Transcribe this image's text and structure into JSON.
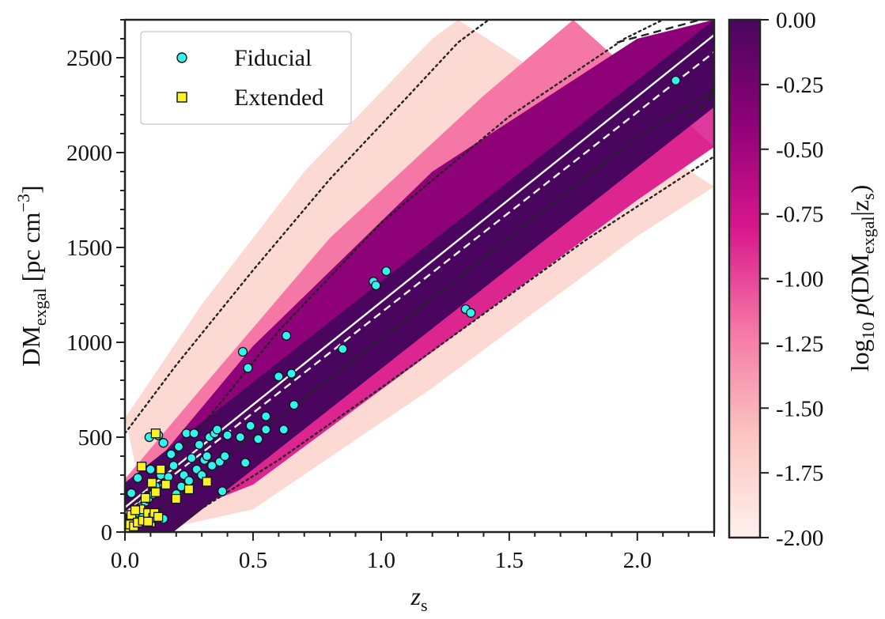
{
  "chart_data": {
    "type": "scatter",
    "title": "",
    "xlabel": {
      "base": "z",
      "sub": "s"
    },
    "ylabel": {
      "base": "DM",
      "sub": "exgal",
      "rest": " [pc cm",
      "sup": "−3",
      "close": "]"
    },
    "xlim": [
      0,
      2.3
    ],
    "ylim": [
      0,
      2700
    ],
    "x_ticks": [
      0.0,
      0.5,
      1.0,
      1.5,
      2.0
    ],
    "x_tick_labels": [
      "0.0",
      "0.5",
      "1.0",
      "1.5",
      "2.0"
    ],
    "y_ticks": [
      0,
      500,
      1000,
      1500,
      2000,
      2500
    ],
    "y_tick_labels": [
      "0",
      "500",
      "1000",
      "1500",
      "2000",
      "2500"
    ],
    "legend_position": "top-left",
    "colorbar": {
      "label": {
        "pre": "log",
        "sub10": "10",
        "p": "p",
        "open": "(DM",
        "sub": "exgal",
        "bar": "|z",
        "subz": "s",
        "close": ")"
      },
      "range": [
        -2.0,
        0.0
      ],
      "ticks": [
        0.0,
        -0.25,
        -0.5,
        -0.75,
        -1.0,
        -1.25,
        -1.5,
        -1.75,
        -2.0
      ],
      "tick_labels": [
        "0.00",
        "-0.25",
        "-0.50",
        "-0.75",
        "-1.00",
        "-1.25",
        "-1.50",
        "-1.75",
        "-2.00"
      ],
      "colors": [
        "#fff1ee",
        "#fbc4c0",
        "#f577a6",
        "#d8168c",
        "#8e0178",
        "#4a065e"
      ]
    },
    "series": [
      {
        "name": "Fiducial",
        "marker": "circle",
        "color": "#33f2f0",
        "points": [
          [
            0.005,
            10
          ],
          [
            0.012,
            20
          ],
          [
            0.02,
            40
          ],
          [
            0.025,
            205
          ],
          [
            0.03,
            55
          ],
          [
            0.04,
            60
          ],
          [
            0.05,
            285
          ],
          [
            0.055,
            100
          ],
          [
            0.06,
            130
          ],
          [
            0.07,
            80
          ],
          [
            0.08,
            160
          ],
          [
            0.09,
            175
          ],
          [
            0.095,
            500
          ],
          [
            0.1,
            330
          ],
          [
            0.11,
            200
          ],
          [
            0.12,
            240
          ],
          [
            0.13,
            510
          ],
          [
            0.14,
            300
          ],
          [
            0.15,
            470
          ],
          [
            0.16,
            260
          ],
          [
            0.17,
            290
          ],
          [
            0.18,
            410
          ],
          [
            0.19,
            350
          ],
          [
            0.2,
            200
          ],
          [
            0.21,
            450
          ],
          [
            0.22,
            240
          ],
          [
            0.23,
            300
          ],
          [
            0.24,
            520
          ],
          [
            0.25,
            270
          ],
          [
            0.26,
            390
          ],
          [
            0.27,
            520
          ],
          [
            0.28,
            330
          ],
          [
            0.29,
            460
          ],
          [
            0.3,
            300
          ],
          [
            0.31,
            380
          ],
          [
            0.32,
            400
          ],
          [
            0.33,
            500
          ],
          [
            0.34,
            350
          ],
          [
            0.35,
            520
          ],
          [
            0.36,
            540
          ],
          [
            0.37,
            370
          ],
          [
            0.38,
            215
          ],
          [
            0.39,
            400
          ],
          [
            0.4,
            510
          ],
          [
            0.45,
            500
          ],
          [
            0.46,
            950
          ],
          [
            0.47,
            365
          ],
          [
            0.48,
            865
          ],
          [
            0.49,
            560
          ],
          [
            0.52,
            490
          ],
          [
            0.55,
            540
          ],
          [
            0.55,
            610
          ],
          [
            0.6,
            820
          ],
          [
            0.62,
            540
          ],
          [
            0.63,
            1035
          ],
          [
            0.65,
            835
          ],
          [
            0.66,
            670
          ],
          [
            0.85,
            965
          ],
          [
            0.97,
            1320
          ],
          [
            0.98,
            1300
          ],
          [
            1.02,
            1375
          ],
          [
            1.33,
            1175
          ],
          [
            1.35,
            1155
          ],
          [
            2.15,
            2380
          ],
          [
            0.15,
            70
          ],
          [
            0.12,
            90
          ],
          [
            0.1,
            100
          ]
        ]
      },
      {
        "name": "Extended",
        "marker": "square",
        "color": "#fbf225",
        "points": [
          [
            0.01,
            20
          ],
          [
            0.02,
            40
          ],
          [
            0.025,
            90
          ],
          [
            0.035,
            30
          ],
          [
            0.05,
            50
          ],
          [
            0.06,
            120
          ],
          [
            0.065,
            345
          ],
          [
            0.07,
            60
          ],
          [
            0.08,
            180
          ],
          [
            0.09,
            100
          ],
          [
            0.1,
            50
          ],
          [
            0.105,
            260
          ],
          [
            0.11,
            75
          ],
          [
            0.115,
            100
          ],
          [
            0.12,
            520
          ],
          [
            0.12,
            210
          ],
          [
            0.13,
            80
          ],
          [
            0.14,
            330
          ],
          [
            0.16,
            250
          ],
          [
            0.2,
            175
          ],
          [
            0.25,
            225
          ],
          [
            0.32,
            265
          ],
          [
            0.04,
            115
          ],
          [
            0.09,
            55
          ]
        ]
      }
    ],
    "lines": [
      {
        "style": "solid",
        "color": "#ffffff",
        "points": [
          [
            0,
            130
          ],
          [
            2.3,
            2620
          ]
        ]
      },
      {
        "style": "dashed",
        "color": "#ffffff",
        "points": [
          [
            0,
            100
          ],
          [
            2.3,
            2530
          ]
        ]
      },
      {
        "style": "dotted",
        "color": "#222222",
        "points": [
          [
            0,
            520
          ],
          [
            0.2,
            880
          ],
          [
            0.5,
            1380
          ],
          [
            0.8,
            1860
          ],
          [
            1.1,
            2290
          ],
          [
            1.3,
            2580
          ],
          [
            1.42,
            2700
          ]
        ]
      },
      {
        "style": "dotted",
        "color": "#222222",
        "points": [
          [
            0.05,
            160
          ],
          [
            0.3,
            560
          ],
          [
            0.6,
            1060
          ],
          [
            1.0,
            1630
          ],
          [
            1.5,
            2190
          ],
          [
            1.95,
            2600
          ],
          [
            2.1,
            2700
          ]
        ]
      },
      {
        "style": "dashed",
        "color": "#222222",
        "points": [
          [
            1.92,
            2580
          ],
          [
            2.3,
            2720
          ]
        ]
      },
      {
        "style": "dotted",
        "color": "#222222",
        "points": [
          [
            0.05,
            30
          ],
          [
            0.4,
            400
          ],
          [
            0.8,
            810
          ],
          [
            1.2,
            1230
          ],
          [
            1.6,
            1660
          ],
          [
            2.0,
            2080
          ],
          [
            2.3,
            2330
          ]
        ]
      },
      {
        "style": "dashed",
        "color": "#222222",
        "points": [
          [
            2.2,
            2180
          ],
          [
            2.28,
            2280
          ],
          [
            2.3,
            2360
          ]
        ]
      },
      {
        "style": "dotted",
        "color": "#222222",
        "points": [
          [
            0.2,
            40
          ],
          [
            0.6,
            380
          ],
          [
            1.0,
            760
          ],
          [
            1.4,
            1150
          ],
          [
            1.8,
            1540
          ],
          [
            2.3,
            1980
          ]
        ]
      }
    ],
    "density": {
      "ridge": [
        [
          0,
          80
        ],
        [
          2.3,
          2520
        ]
      ],
      "outer_upper": [
        [
          0,
          600
        ],
        [
          0.3,
          1200
        ],
        [
          0.7,
          1900
        ],
        [
          1.2,
          2600
        ],
        [
          1.3,
          2700
        ]
      ],
      "mid_upper": [
        [
          0,
          280
        ],
        [
          0.3,
          760
        ],
        [
          0.8,
          1550
        ],
        [
          1.4,
          2300
        ],
        [
          1.75,
          2700
        ]
      ],
      "core_upper": [
        [
          0,
          170
        ],
        [
          0.5,
          980
        ],
        [
          1.2,
          1900
        ],
        [
          2.0,
          2600
        ],
        [
          2.3,
          2700
        ]
      ],
      "core_lower": [
        [
          0,
          20
        ],
        [
          0.5,
          400
        ],
        [
          1.2,
          1170
        ],
        [
          2.0,
          1980
        ],
        [
          2.3,
          2280
        ]
      ],
      "mid_lower": [
        [
          0.05,
          10
        ],
        [
          0.5,
          250
        ],
        [
          1.2,
          950
        ],
        [
          2.0,
          1750
        ],
        [
          2.3,
          2030
        ]
      ],
      "outer_lower": [
        [
          0.1,
          0
        ],
        [
          0.5,
          120
        ],
        [
          1.2,
          760
        ],
        [
          2.0,
          1560
        ],
        [
          2.3,
          1820
        ]
      ]
    }
  }
}
